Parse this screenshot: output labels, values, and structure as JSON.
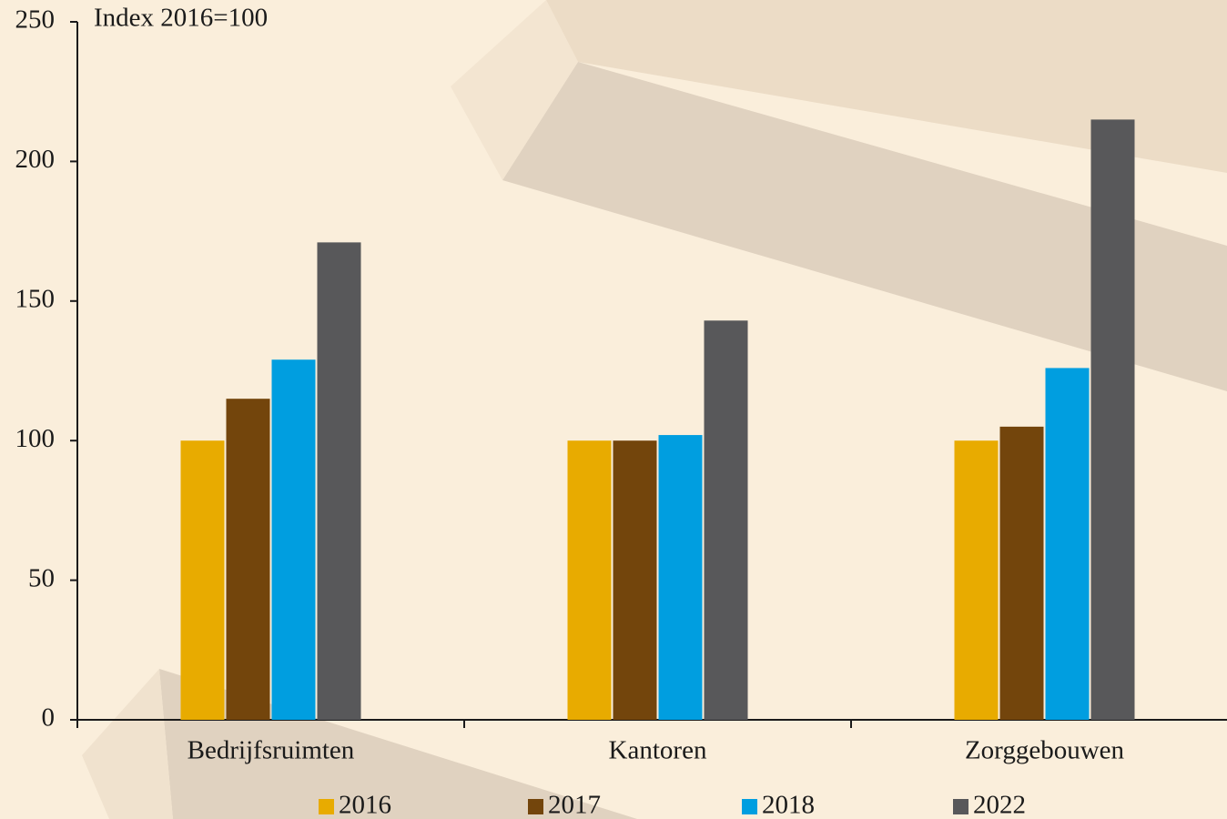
{
  "chart_data": {
    "type": "bar",
    "ylabel": "Index 2016=100",
    "categories": [
      "Bedrijfsruimten",
      "Kantoren",
      "Zorggebouwen"
    ],
    "series": [
      {
        "name": "2016",
        "color": "#e8ab00",
        "values": [
          100,
          100,
          100
        ]
      },
      {
        "name": "2017",
        "color": "#73450c",
        "values": [
          115,
          100,
          105
        ]
      },
      {
        "name": "2018",
        "color": "#009ee0",
        "values": [
          129,
          102,
          126
        ]
      },
      {
        "name": "2022",
        "color": "#58585a",
        "values": [
          171,
          143,
          215
        ]
      }
    ],
    "ylim": [
      0,
      250
    ],
    "yticks": [
      0,
      50,
      100,
      150,
      200,
      250
    ],
    "grid": false
  }
}
